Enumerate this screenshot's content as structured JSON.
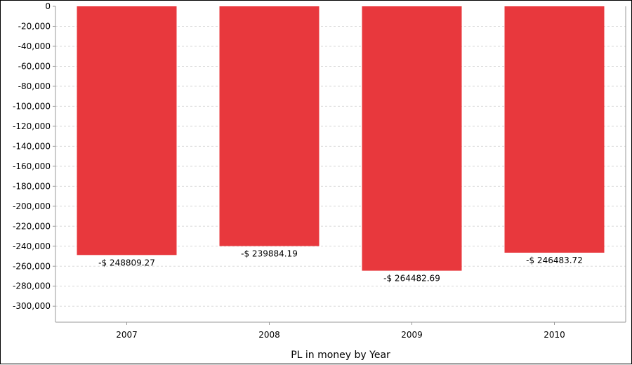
{
  "chart_data": {
    "type": "bar",
    "title": "",
    "xlabel": "PL in money by Year",
    "ylabel": "",
    "categories": [
      "2007",
      "2008",
      "2009",
      "2010"
    ],
    "values": [
      -248809.27,
      -239884.19,
      -264482.69,
      -246483.72
    ],
    "data_labels": [
      "-$ 248809.27",
      "-$ 239884.19",
      "-$ 264482.69",
      "-$ 246483.72"
    ],
    "ylim": [
      -316000,
      0
    ],
    "yticks": [
      0,
      -20000,
      -40000,
      -60000,
      -80000,
      -100000,
      -120000,
      -140000,
      -160000,
      -180000,
      -200000,
      -220000,
      -240000,
      -260000,
      -280000,
      -300000
    ],
    "ytick_labels": [
      "0",
      "-20,000",
      "-40,000",
      "-60,000",
      "-80,000",
      "-100,000",
      "-120,000",
      "-140,000",
      "-160,000",
      "-180,000",
      "-200,000",
      "-220,000",
      "-240,000",
      "-260,000",
      "-280,000",
      "-300,000"
    ],
    "grid": "horizontal dashed",
    "legend": "none",
    "bar_color": "#e8383d",
    "grid_color": "#d8d8d8",
    "axis_color": "#999999"
  }
}
